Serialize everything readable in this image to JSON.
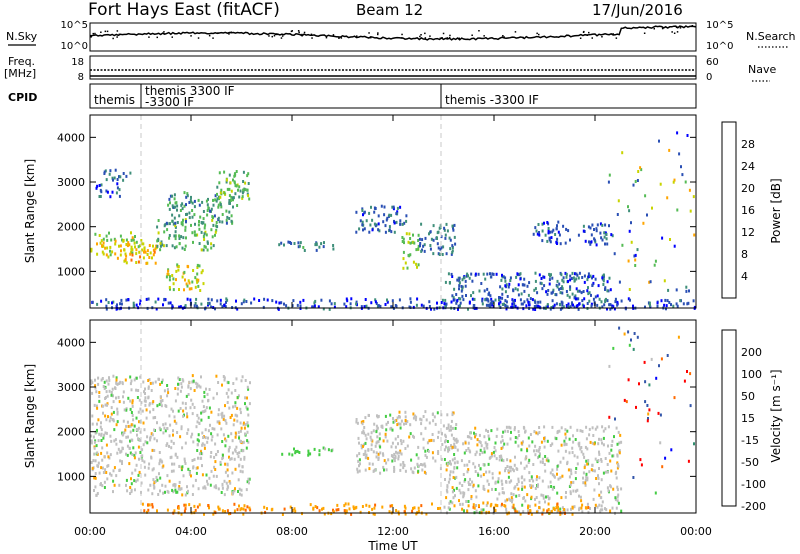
{
  "header": {
    "station": "Fort Hays East (fitACF)",
    "beam": "Beam 12",
    "date": "17/Jun/2016"
  },
  "noise_panel": {
    "left_label": "N.Sky",
    "left_ticks": [
      "10^5",
      "10^0"
    ],
    "right_ticks": [
      "10^5",
      "10^0"
    ],
    "right_label": "N.Search"
  },
  "freq_panel": {
    "label": "Freq.",
    "unit": "[MHz]",
    "left_ticks": [
      "18",
      "8"
    ],
    "right_ticks": [
      "60",
      "0"
    ],
    "right_label": "Nave"
  },
  "cpid_panel": {
    "label": "CPID",
    "segments": [
      "themis",
      "themis 3300 IF",
      "-3300 IF",
      "themis -3300 IF"
    ]
  },
  "power_panel": {
    "ylabel": "Slant Range [km]",
    "yticks": [
      "1000",
      "2000",
      "3000",
      "4000"
    ],
    "colorbar_label": "Power [dB]",
    "colorbar_ticks": [
      "4",
      "8",
      "12",
      "16",
      "20",
      "24",
      "28"
    ]
  },
  "velocity_panel": {
    "ylabel": "Slant Range [km]",
    "yticks": [
      "1000",
      "2000",
      "3000",
      "4000"
    ],
    "colorbar_label": "Velocity [m s⁻¹]",
    "colorbar_ticks": [
      "200",
      "100",
      "50",
      "15",
      "-15",
      "-50",
      "-100",
      "-200"
    ]
  },
  "xaxis": {
    "label": "Time UT",
    "ticks": [
      "00:00",
      "04:00",
      "08:00",
      "12:00",
      "16:00",
      "20:00",
      "00:00"
    ]
  },
  "chart_data": {
    "type": "heatmap",
    "x_range_hours": [
      0,
      24
    ],
    "y_range_km": [
      180,
      4500
    ],
    "power_colors": [
      "#0000ff",
      "#2a4fb4",
      "#3f8f7a",
      "#55bb55",
      "#c8d400",
      "#ffa500",
      "#ff6a00",
      "#ff0000"
    ],
    "velocity_colors": [
      "#0000ff",
      "#3355aa",
      "#2f8f6f",
      "#44cc44",
      "#c0c0c0",
      "#ffa500",
      "#ff6a00",
      "#ff0000"
    ],
    "power_regions": [
      {
        "t0": 0.0,
        "t1": 2.0,
        "r0": 1350,
        "r1": 1900,
        "db": 19
      },
      {
        "t0": 1.0,
        "t1": 2.6,
        "r0": 1200,
        "r1": 1700,
        "db": 23
      },
      {
        "t0": 2.6,
        "t1": 5.0,
        "r0": 1500,
        "r1": 2200,
        "db": 15
      },
      {
        "t0": 3.0,
        "t1": 5.8,
        "r0": 2100,
        "r1": 2800,
        "db": 13
      },
      {
        "t0": 5.0,
        "t1": 6.3,
        "r0": 2500,
        "r1": 3300,
        "db": 16
      },
      {
        "t0": 3.0,
        "t1": 4.5,
        "r0": 600,
        "r1": 1200,
        "db": 20
      },
      {
        "t0": 0.2,
        "t1": 1.2,
        "r0": 2700,
        "r1": 3000,
        "db": 8
      },
      {
        "t0": 0.4,
        "t1": 1.6,
        "r0": 3050,
        "r1": 3300,
        "db": 10
      },
      {
        "t0": 7.4,
        "t1": 9.6,
        "r0": 1500,
        "r1": 1700,
        "db": 11
      },
      {
        "t0": 10.5,
        "t1": 12.5,
        "r0": 1900,
        "r1": 2500,
        "db": 9
      },
      {
        "t0": 12.3,
        "t1": 13.0,
        "r0": 1100,
        "r1": 1900,
        "db": 18
      },
      {
        "t0": 13.0,
        "t1": 14.5,
        "r0": 1400,
        "r1": 2100,
        "db": 10
      },
      {
        "t0": 14.0,
        "t1": 20.6,
        "r0": 200,
        "r1": 1000,
        "db": 9
      },
      {
        "t0": 17.5,
        "t1": 19.0,
        "r0": 1650,
        "r1": 2150,
        "db": 8
      },
      {
        "t0": 19.3,
        "t1": 20.7,
        "r0": 1600,
        "r1": 2100,
        "db": 8
      },
      {
        "t0": 0.0,
        "t1": 24.0,
        "r0": 180,
        "r1": 420,
        "db": 7
      }
    ],
    "velocity_regions": [
      {
        "t0": 0.0,
        "t1": 6.3,
        "r0": 600,
        "r1": 3300,
        "v": 0
      },
      {
        "t0": 7.4,
        "t1": 9.6,
        "r0": 1500,
        "r1": 1700,
        "v": 30
      },
      {
        "t0": 10.5,
        "t1": 14.5,
        "r0": 1100,
        "r1": 2500,
        "v": 0
      },
      {
        "t0": 14.0,
        "t1": 21.0,
        "r0": 200,
        "r1": 2150,
        "v": 0
      },
      {
        "t0": 2.0,
        "t1": 20.0,
        "r0": 180,
        "r1": 420,
        "v": -40
      }
    ]
  }
}
